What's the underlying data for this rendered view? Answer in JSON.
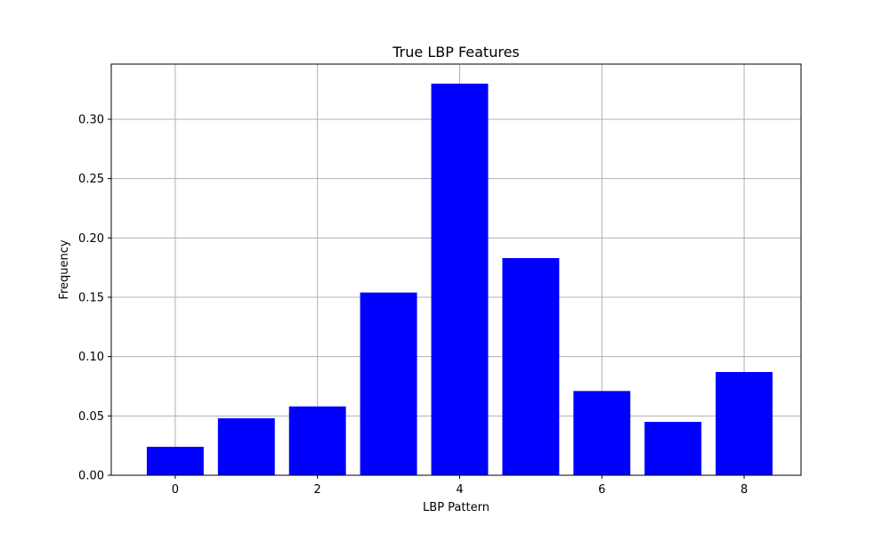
{
  "chart_data": {
    "type": "bar",
    "title": "True LBP Features",
    "xlabel": "LBP Pattern",
    "ylabel": "Frequency",
    "categories": [
      0,
      1,
      2,
      3,
      4,
      5,
      6,
      7,
      8
    ],
    "values": [
      0.024,
      0.048,
      0.058,
      0.154,
      0.33,
      0.183,
      0.071,
      0.045,
      0.087
    ],
    "xlim": [
      -0.9,
      8.8
    ],
    "ylim": [
      0,
      0.3465
    ],
    "xticks": [
      0,
      2,
      4,
      6,
      8
    ],
    "xtick_labels": [
      "0",
      "2",
      "4",
      "6",
      "8"
    ],
    "yticks": [
      0.0,
      0.05,
      0.1,
      0.15,
      0.2,
      0.25,
      0.3
    ],
    "ytick_labels": [
      "0.00",
      "0.05",
      "0.10",
      "0.15",
      "0.20",
      "0.25",
      "0.30"
    ],
    "bar_width": 0.8,
    "grid": true,
    "legend": "none",
    "colors": {
      "bar": "#0000ff",
      "grid": "#b0b0b0",
      "axes": "#000000"
    }
  }
}
